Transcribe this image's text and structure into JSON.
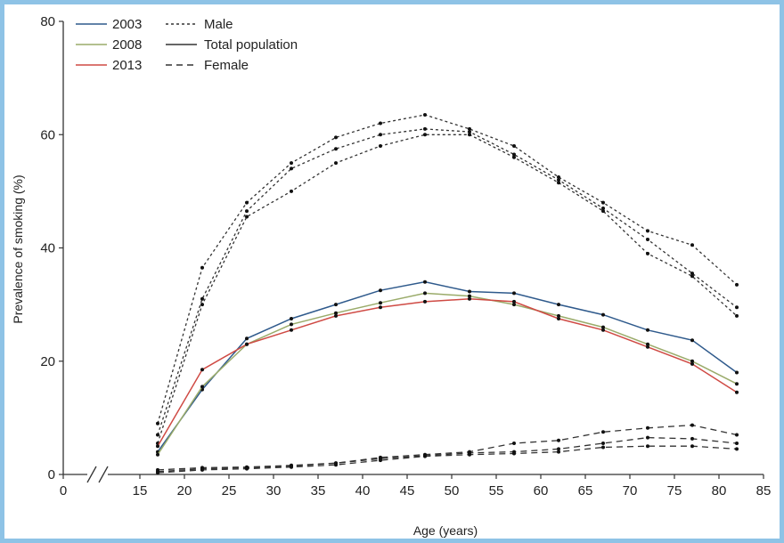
{
  "chart_data": {
    "type": "line",
    "title": "",
    "xlabel": "Age (years)",
    "ylabel": "Prevalence of smoking (%)",
    "xlim": [
      0,
      85
    ],
    "ylim": [
      0,
      80
    ],
    "x_ticks": [
      "0",
      "15",
      "20",
      "25",
      "30",
      "35",
      "40",
      "45",
      "50",
      "55",
      "60",
      "65",
      "70",
      "75",
      "80",
      "85"
    ],
    "y_ticks": [
      "0",
      "20",
      "40",
      "60",
      "80"
    ],
    "axis_break": true,
    "grid": false,
    "legend_position": "top-left",
    "legend": {
      "years": [
        {
          "label": "2003",
          "color": "#2f5a8c"
        },
        {
          "label": "2008",
          "color": "#9aab6a"
        },
        {
          "label": "2013",
          "color": "#cf4a44"
        }
      ],
      "groups": [
        {
          "label": "Male",
          "dash": "dotted"
        },
        {
          "label": "Total population",
          "dash": "solid"
        },
        {
          "label": "Female",
          "dash": "dashed"
        }
      ]
    },
    "x": [
      17,
      22,
      27,
      32,
      37,
      42,
      47,
      52,
      57,
      62,
      67,
      72,
      77,
      82
    ],
    "series": [
      {
        "name": "Male 2003",
        "group": "male",
        "year": "2003",
        "values": [
          9,
          36.5,
          48,
          55,
          59.5,
          62,
          63.5,
          61,
          58,
          52.5,
          48,
          43,
          40.5,
          33.5
        ]
      },
      {
        "name": "Male 2008",
        "group": "male",
        "year": "2008",
        "values": [
          7,
          31,
          46.5,
          54,
          57.5,
          60,
          61,
          60.5,
          56.5,
          52,
          47,
          41.5,
          35.5,
          29.5
        ]
      },
      {
        "name": "Male 2013",
        "group": "male",
        "year": "2013",
        "values": [
          5.5,
          30,
          45.5,
          50,
          55,
          58,
          60,
          60,
          56,
          51.5,
          46.5,
          39,
          35,
          28
        ]
      },
      {
        "name": "Total population 2003",
        "group": "total",
        "year": "2003",
        "values": [
          4,
          15,
          24,
          27.5,
          30,
          32.5,
          34,
          32.3,
          32,
          30,
          28.2,
          25.5,
          23.7,
          18
        ]
      },
      {
        "name": "Total population 2008",
        "group": "total",
        "year": "2008",
        "values": [
          3.5,
          15.5,
          23,
          26.5,
          28.5,
          30.3,
          32,
          31.5,
          30,
          28,
          26,
          23,
          20,
          16
        ]
      },
      {
        "name": "Total population 2013",
        "group": "total",
        "year": "2013",
        "values": [
          5,
          18.5,
          23,
          25.5,
          28,
          29.5,
          30.5,
          31,
          30.5,
          27.5,
          25.5,
          22.5,
          19.5,
          14.5
        ]
      },
      {
        "name": "Female 2003",
        "group": "female",
        "year": "2003",
        "values": [
          0.5,
          1,
          1.2,
          1.5,
          2,
          3,
          3.5,
          4,
          5.5,
          6,
          7.5,
          8.2,
          8.7,
          7
        ]
      },
      {
        "name": "Female 2008",
        "group": "female",
        "year": "2008",
        "values": [
          0.8,
          1.2,
          1.3,
          1.6,
          2,
          2.8,
          3.3,
          3.8,
          4,
          4.5,
          5.5,
          6.5,
          6.3,
          5.5
        ]
      },
      {
        "name": "Female 2013",
        "group": "female",
        "year": "2013",
        "values": [
          0.3,
          0.8,
          1,
          1.3,
          1.7,
          2.5,
          3.2,
          3.5,
          3.7,
          4,
          4.8,
          5,
          5,
          4.5
        ]
      }
    ]
  }
}
